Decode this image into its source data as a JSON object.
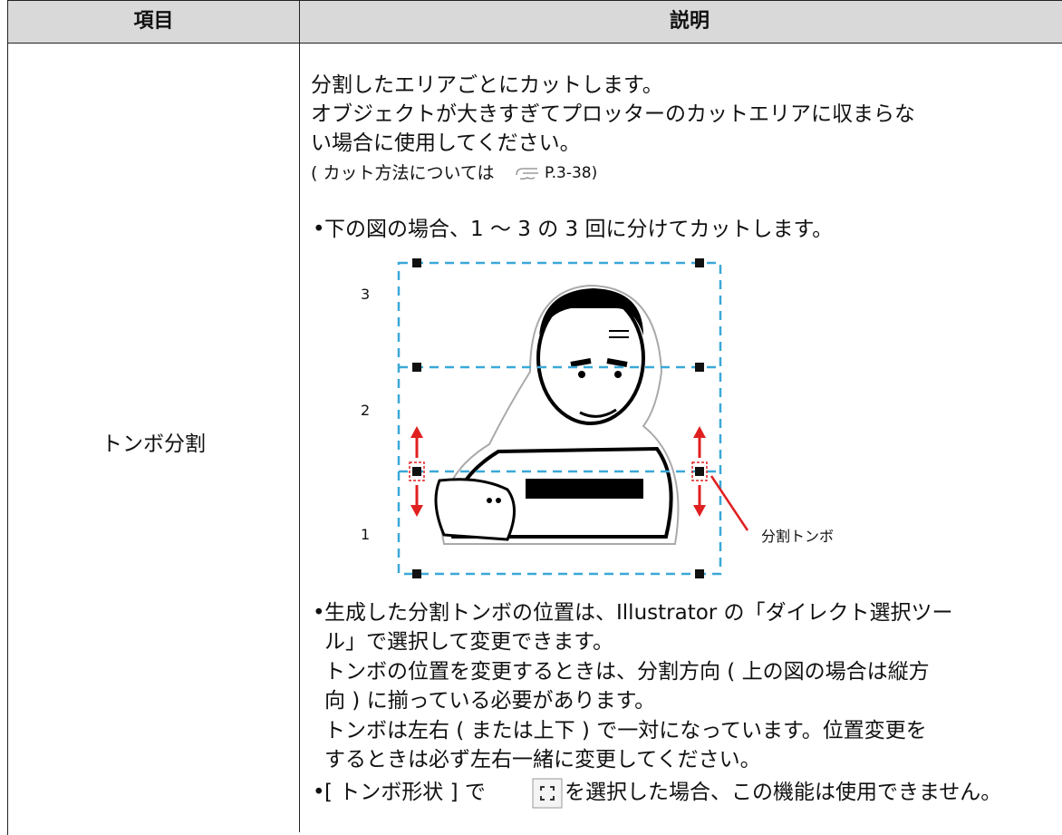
{
  "table": {
    "header": [
      "項目",
      "説明"
    ],
    "rows": [
      {
        "item": "トンボ分割",
        "intro": [
          "分割したエリアごとにカットします。",
          "オブジェクトが大きすぎてプロッターのカットエリアに収まらな",
          "い場合に使用してください。"
        ],
        "reference": [
          "( カット方法については",
          "P.3-38)"
        ],
        "bullet1": "下の図の場合、1 〜 3 の 3 回に分けてカットします。",
        "figure": {
          "area_labels": [
            "3",
            "2",
            "1"
          ],
          "callout": "分割トンボ"
        },
        "bullet2": [
          "生成した分割トンボの位置は、Illustrator の「ダイレクト選択ツー",
          "ル」で選択して変更できます。",
          "トンボの位置を変更するときは、分割方向 ( 上の図の場合は縦方",
          "向 ) に揃っている必要があります。",
          "トンボは左右 ( または上下 ) で一対になっています。位置変更を",
          "するときは必ず左右一緒に変更してください。"
        ],
        "bullet3": [
          "[ トンボ形状 ] で",
          "を選択した場合、この機能は使用できません。"
        ]
      }
    ]
  }
}
